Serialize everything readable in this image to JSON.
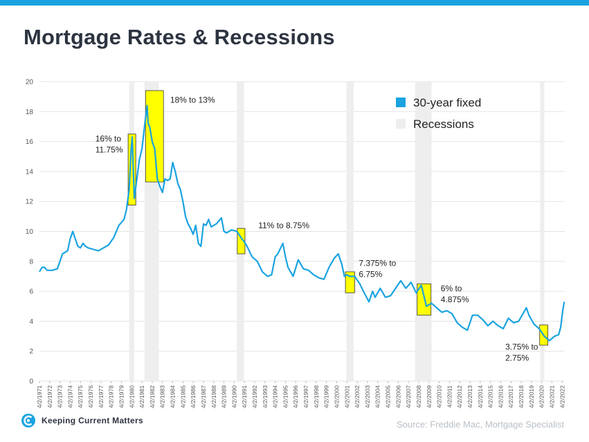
{
  "title": "Mortgage Rates & Recessions",
  "source": "Source: Freddie Mac, Mortgage Specialist",
  "logo_text": "Keeping Current Matters",
  "colors": {
    "top_bar": "#1aa3e0",
    "line": "#1aa3e0",
    "recession": "#eeeeee",
    "highlight_fill": "#ffff00",
    "highlight_stroke": "#333333",
    "title": "#2c3440",
    "axis_text": "#555555"
  },
  "chart_data": {
    "type": "line",
    "ylim": [
      0,
      20
    ],
    "yticks": [
      0,
      2,
      4,
      6,
      8,
      10,
      12,
      14,
      16,
      18,
      20
    ],
    "xlim": [
      1971.25,
      2022.5
    ],
    "xtick_labels": [
      "4/2/1971",
      "4/2/1972",
      "4/2/1973",
      "4/2/1974",
      "4/2/1975",
      "4/2/1976",
      "4/2/1977",
      "4/2/1978",
      "4/2/1979",
      "4/2/1980",
      "4/2/1981",
      "4/2/1982",
      "4/2/1983",
      "4/2/1984",
      "4/2/1985",
      "4/2/1986",
      "4/2/1987",
      "4/2/1988",
      "4/2/1989",
      "4/2/1990",
      "4/2/1991",
      "4/2/1992",
      "4/2/1993",
      "4/2/1994",
      "4/2/1995",
      "4/2/1996",
      "4/2/1997",
      "4/2/1998",
      "4/2/1999",
      "4/2/2000",
      "4/2/2001",
      "4/2/2002",
      "4/2/2003",
      "4/2/2004",
      "4/2/2005",
      "4/2/2006",
      "4/2/2007",
      "4/2/2008",
      "4/2/2009",
      "4/2/2010",
      "4/2/2011",
      "4/2/2012",
      "4/2/2013",
      "4/2/2014",
      "4/2/2015",
      "4/2/2016",
      "4/2/2017",
      "4/2/2018",
      "4/2/2019",
      "4/2/2020",
      "4/2/2021",
      "4/2/2022"
    ],
    "grid": "horizontal",
    "legend_placement": "top-right",
    "series": [
      {
        "name": "30-year fixed",
        "x": [
          1971.25,
          1971.5,
          1971.75,
          1972.0,
          1972.5,
          1973.0,
          1973.5,
          1974.0,
          1974.25,
          1974.5,
          1974.75,
          1975.0,
          1975.25,
          1975.5,
          1975.75,
          1976.0,
          1976.5,
          1977.0,
          1977.5,
          1978.0,
          1978.5,
          1979.0,
          1979.5,
          1979.75,
          1980.0,
          1980.2,
          1980.3,
          1980.5,
          1980.75,
          1981.0,
          1981.25,
          1981.5,
          1981.75,
          1981.85,
          1982.0,
          1982.25,
          1982.5,
          1982.75,
          1983.0,
          1983.25,
          1983.5,
          1983.75,
          1984.0,
          1984.25,
          1984.5,
          1984.75,
          1985.0,
          1985.25,
          1985.5,
          1985.75,
          1986.0,
          1986.25,
          1986.5,
          1986.75,
          1987.0,
          1987.25,
          1987.5,
          1987.75,
          1988.0,
          1988.5,
          1989.0,
          1989.25,
          1989.5,
          1990.0,
          1990.5,
          1991.0,
          1991.25,
          1991.5,
          1992.0,
          1992.5,
          1993.0,
          1993.5,
          1993.9,
          1994.25,
          1994.5,
          1995.0,
          1995.25,
          1995.5,
          1996.0,
          1996.5,
          1997.0,
          1997.5,
          1998.0,
          1998.5,
          1999.0,
          1999.5,
          2000.0,
          2000.4,
          2000.75,
          2001.0,
          2001.25,
          2001.5,
          2002.0,
          2002.5,
          2003.0,
          2003.4,
          2003.75,
          2004.0,
          2004.5,
          2005.0,
          2005.5,
          2006.0,
          2006.5,
          2007.0,
          2007.5,
          2008.0,
          2008.5,
          2009.0,
          2009.25,
          2009.5,
          2010.0,
          2010.5,
          2011.0,
          2011.5,
          2012.0,
          2012.5,
          2013.0,
          2013.5,
          2014.0,
          2014.5,
          2015.0,
          2015.5,
          2016.0,
          2016.5,
          2017.0,
          2017.5,
          2018.0,
          2018.75,
          2019.0,
          2019.5,
          2020.0,
          2020.5,
          2021.0,
          2021.5,
          2021.9,
          2022.1,
          2022.3,
          2022.45
        ],
        "values": [
          7.3,
          7.6,
          7.6,
          7.4,
          7.4,
          7.5,
          8.5,
          8.7,
          9.5,
          10.0,
          9.5,
          9.0,
          8.9,
          9.2,
          9.0,
          8.9,
          8.8,
          8.7,
          8.9,
          9.1,
          9.6,
          10.4,
          10.8,
          11.5,
          12.8,
          15.5,
          16.3,
          12.2,
          13.5,
          14.8,
          15.5,
          17.0,
          18.4,
          17.2,
          17.0,
          16.0,
          15.5,
          13.5,
          13.0,
          12.6,
          13.5,
          13.4,
          13.5,
          14.6,
          14.0,
          13.2,
          12.8,
          12.0,
          11.0,
          10.5,
          10.2,
          9.8,
          10.4,
          9.2,
          9.0,
          10.5,
          10.4,
          10.8,
          10.3,
          10.5,
          10.9,
          10.0,
          9.9,
          10.1,
          10.0,
          9.5,
          9.3,
          9.0,
          8.3,
          8.0,
          7.3,
          7.0,
          7.1,
          8.3,
          8.5,
          9.2,
          8.3,
          7.6,
          7.0,
          8.1,
          7.5,
          7.4,
          7.1,
          6.9,
          6.8,
          7.6,
          8.2,
          8.5,
          7.8,
          7.0,
          7.1,
          7.0,
          7.0,
          6.5,
          5.8,
          5.3,
          6.0,
          5.6,
          6.2,
          5.6,
          5.7,
          6.2,
          6.7,
          6.2,
          6.6,
          5.9,
          6.4,
          5.0,
          5.1,
          5.2,
          4.9,
          4.6,
          4.7,
          4.5,
          3.9,
          3.6,
          3.4,
          4.4,
          4.4,
          4.1,
          3.7,
          4.0,
          3.7,
          3.5,
          4.2,
          3.9,
          4.0,
          4.9,
          4.4,
          3.8,
          3.5,
          3.0,
          2.7,
          3.0,
          3.1,
          3.6,
          4.7,
          5.3
        ]
      }
    ],
    "recessions": [
      [
        1980.0,
        1980.5
      ],
      [
        1981.5,
        1982.9
      ],
      [
        1990.5,
        1991.2
      ],
      [
        2001.2,
        2001.9
      ],
      [
        2007.9,
        2009.5
      ],
      [
        2020.1,
        2020.4
      ]
    ],
    "highlights": [
      {
        "x0": 1979.9,
        "x1": 1980.65,
        "y0": 11.75,
        "y1": 16.5,
        "label_lines": [
          "16% to",
          "11.75%"
        ],
        "label_x": 1976.7,
        "label_y": 16.0
      },
      {
        "x0": 1981.6,
        "x1": 1983.35,
        "y0": 13.3,
        "y1": 19.4,
        "label_lines": [
          "18% to 13%"
        ],
        "label_x": 1984.0,
        "label_y": 18.6
      },
      {
        "x0": 1990.55,
        "x1": 1991.3,
        "y0": 8.5,
        "y1": 10.2,
        "label_lines": [
          "11% to 8.75%"
        ],
        "label_x": 1992.6,
        "label_y": 10.2
      },
      {
        "x0": 2001.1,
        "x1": 2002.0,
        "y0": 5.9,
        "y1": 7.3,
        "label_lines": [
          "7.375% to",
          "6.75%"
        ],
        "label_x": 2002.4,
        "label_y": 7.7
      },
      {
        "x0": 2008.1,
        "x1": 2009.45,
        "y0": 4.4,
        "y1": 6.5,
        "label_lines": [
          "6% to",
          "4.875%"
        ],
        "label_x": 2010.4,
        "label_y": 6.0
      },
      {
        "x0": 2020.05,
        "x1": 2020.85,
        "y0": 2.4,
        "y1": 3.75,
        "label_lines": [
          "3.75% to",
          "2.75%"
        ],
        "label_x": 2016.7,
        "label_y": 2.1
      }
    ],
    "legend": [
      {
        "label": "30-year fixed",
        "kind": "line"
      },
      {
        "label": "Recessions",
        "kind": "recession"
      }
    ]
  }
}
